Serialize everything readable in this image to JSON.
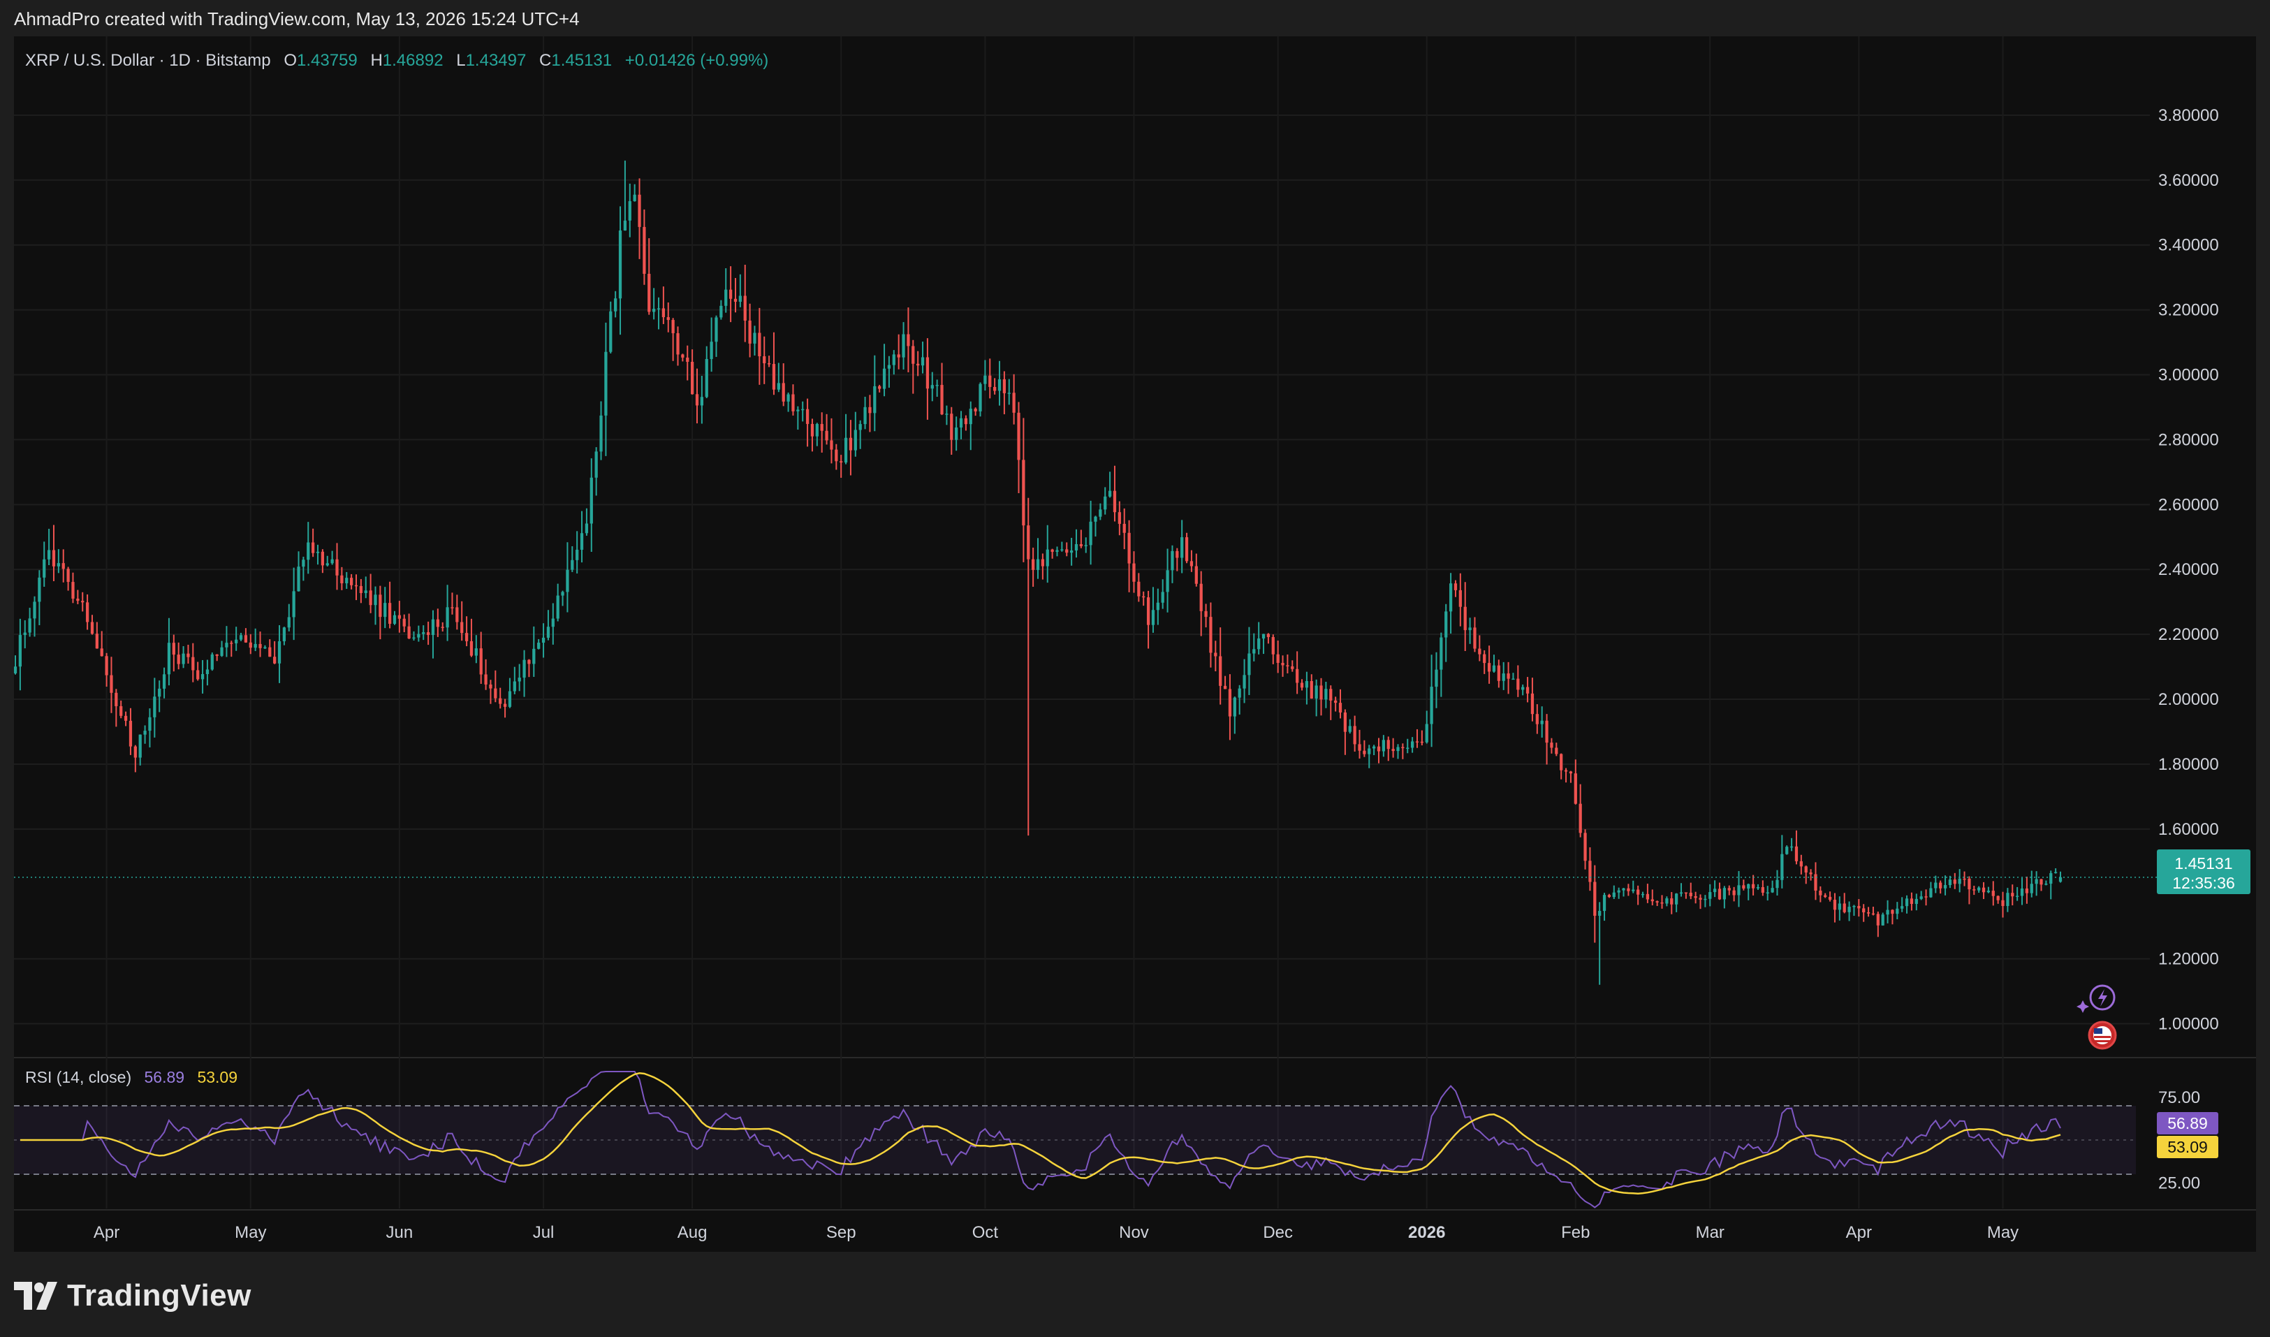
{
  "header": {
    "text": "AhmadPro created with TradingView.com, May 13, 2026 15:24 UTC+4"
  },
  "brand": {
    "name": "TradingView"
  },
  "colors": {
    "up": "#26a69a",
    "down": "#ef5350",
    "rsi": "#7e57c2",
    "rsi_ma": "#f5d33c",
    "background": "#0f0f0f"
  },
  "legend": {
    "symbol": "XRP / U.S. Dollar · 1D · Bitstamp",
    "open_label": "O",
    "open": "1.43759",
    "high_label": "H",
    "high": "1.46892",
    "low_label": "L",
    "low": "1.43497",
    "close_label": "C",
    "close": "1.45131",
    "change": "+0.01426 (+0.99%)"
  },
  "price_axis": {
    "ticks": [
      "3.80000",
      "3.60000",
      "3.40000",
      "3.20000",
      "3.00000",
      "2.80000",
      "2.60000",
      "2.40000",
      "2.20000",
      "2.00000",
      "1.80000",
      "1.60000",
      "1.20000",
      "1.00000"
    ],
    "last_price": "1.45131",
    "countdown": "12:35:36"
  },
  "rsi": {
    "label": "RSI (14, close)",
    "value": "56.89",
    "ma_value": "53.09",
    "ticks": [
      "75.00",
      "25.00"
    ]
  },
  "time_axis": {
    "labels": [
      "Apr",
      "May",
      "Jun",
      "Jul",
      "Aug",
      "Sep",
      "Oct",
      "Nov",
      "Dec",
      "2026",
      "Feb",
      "Mar",
      "Apr",
      "May"
    ]
  },
  "chart_data": {
    "type": "candlestick",
    "symbol": "XRP / U.S. Dollar",
    "interval": "1D",
    "exchange": "Bitstamp",
    "y_axis_range": [
      0.9,
      4.0
    ],
    "price_path_keypoints": [
      {
        "date": "2025-03-13",
        "close": 2.13
      },
      {
        "date": "2025-03-20",
        "close": 2.45
      },
      {
        "date": "2025-03-27",
        "close": 2.3
      },
      {
        "date": "2025-04-07",
        "close": 1.82
      },
      {
        "date": "2025-04-14",
        "close": 2.15
      },
      {
        "date": "2025-04-21",
        "close": 2.08
      },
      {
        "date": "2025-04-26",
        "close": 2.2
      },
      {
        "date": "2025-05-06",
        "close": 2.12
      },
      {
        "date": "2025-05-13",
        "close": 2.48
      },
      {
        "date": "2025-05-20",
        "close": 2.38
      },
      {
        "date": "2025-06-05",
        "close": 2.18
      },
      {
        "date": "2025-06-12",
        "close": 2.28
      },
      {
        "date": "2025-06-22",
        "close": 1.98
      },
      {
        "date": "2025-07-03",
        "close": 2.25
      },
      {
        "date": "2025-07-10",
        "close": 2.55
      },
      {
        "date": "2025-07-17",
        "close": 3.4
      },
      {
        "date": "2025-07-20",
        "close": 3.55
      },
      {
        "date": "2025-07-23",
        "close": 3.15
      },
      {
        "date": "2025-07-27",
        "close": 3.2
      },
      {
        "date": "2025-08-02",
        "close": 2.9
      },
      {
        "date": "2025-08-08",
        "close": 3.3
      },
      {
        "date": "2025-08-14",
        "close": 3.1
      },
      {
        "date": "2025-08-21",
        "close": 2.9
      },
      {
        "date": "2025-09-01",
        "close": 2.75
      },
      {
        "date": "2025-09-10",
        "close": 3.0
      },
      {
        "date": "2025-09-14",
        "close": 3.1
      },
      {
        "date": "2025-09-21",
        "close": 2.95
      },
      {
        "date": "2025-09-25",
        "close": 2.8
      },
      {
        "date": "2025-10-02",
        "close": 3.0
      },
      {
        "date": "2025-10-07",
        "close": 2.9
      },
      {
        "date": "2025-10-10",
        "close": 2.4
      },
      {
        "date": "2025-10-15",
        "close": 2.45
      },
      {
        "date": "2025-10-20",
        "close": 2.45
      },
      {
        "date": "2025-10-27",
        "close": 2.62
      },
      {
        "date": "2025-11-04",
        "close": 2.25
      },
      {
        "date": "2025-11-11",
        "close": 2.5
      },
      {
        "date": "2025-11-21",
        "close": 1.95
      },
      {
        "date": "2025-11-27",
        "close": 2.2
      },
      {
        "date": "2025-12-05",
        "close": 2.05
      },
      {
        "date": "2025-12-12",
        "close": 2.0
      },
      {
        "date": "2025-12-18",
        "close": 1.85
      },
      {
        "date": "2025-12-31",
        "close": 1.85
      },
      {
        "date": "2026-01-06",
        "close": 2.35
      },
      {
        "date": "2026-01-12",
        "close": 2.12
      },
      {
        "date": "2026-01-20",
        "close": 2.05
      },
      {
        "date": "2026-01-31",
        "close": 1.75
      },
      {
        "date": "2026-02-05",
        "close": 1.35
      },
      {
        "date": "2026-02-10",
        "close": 1.42
      },
      {
        "date": "2026-02-20",
        "close": 1.38
      },
      {
        "date": "2026-03-14",
        "close": 1.42
      },
      {
        "date": "2026-03-17",
        "close": 1.55
      },
      {
        "date": "2026-03-25",
        "close": 1.38
      },
      {
        "date": "2026-04-05",
        "close": 1.32
      },
      {
        "date": "2026-04-20",
        "close": 1.45
      },
      {
        "date": "2026-05-01",
        "close": 1.38
      },
      {
        "date": "2026-05-09",
        "close": 1.44
      },
      {
        "date": "2026-05-13",
        "close": 1.45131
      }
    ],
    "notable_wicks": [
      {
        "date": "2025-10-10",
        "low": 1.58
      },
      {
        "date": "2026-02-06",
        "low": 1.12
      },
      {
        "date": "2025-07-18",
        "high": 3.66
      }
    ],
    "last_candle": {
      "date": "2026-05-13",
      "open": 1.43759,
      "high": 1.46892,
      "low": 1.43497,
      "close": 1.45131
    },
    "rsi": {
      "period": 14,
      "value": 56.89,
      "ma": 53.09,
      "bands": [
        70,
        30
      ],
      "range": [
        10,
        90
      ]
    }
  }
}
